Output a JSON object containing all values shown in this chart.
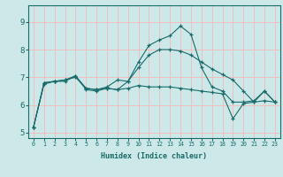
{
  "title": "",
  "xlabel": "Humidex (Indice chaleur)",
  "bg_color": "#cce8e8",
  "line_color": "#1a6b6b",
  "grid_color": "#f5b8b8",
  "xlim": [
    -0.5,
    23.5
  ],
  "ylim": [
    4.8,
    9.6
  ],
  "yticks": [
    5,
    6,
    7,
    8,
    9
  ],
  "xticks": [
    0,
    1,
    2,
    3,
    4,
    5,
    6,
    7,
    8,
    9,
    10,
    11,
    12,
    13,
    14,
    15,
    16,
    17,
    18,
    19,
    20,
    21,
    22,
    23
  ],
  "series": [
    [
      5.2,
      6.8,
      6.85,
      6.9,
      7.0,
      6.6,
      6.55,
      6.6,
      6.55,
      6.85,
      7.55,
      8.15,
      8.35,
      8.5,
      8.85,
      8.55,
      7.35,
      6.65,
      6.5,
      6.1,
      6.1,
      6.15,
      6.5,
      6.1
    ],
    [
      5.2,
      6.8,
      6.85,
      6.9,
      7.05,
      6.6,
      6.55,
      6.65,
      6.9,
      6.85,
      7.35,
      7.8,
      8.0,
      8.0,
      7.95,
      7.8,
      7.55,
      7.3,
      7.1,
      6.9,
      6.5,
      6.1,
      6.15,
      6.1
    ],
    [
      5.2,
      6.75,
      6.85,
      6.85,
      7.05,
      6.55,
      6.5,
      6.6,
      6.55,
      6.6,
      6.7,
      6.65,
      6.65,
      6.65,
      6.6,
      6.55,
      6.5,
      6.45,
      6.4,
      5.5,
      6.05,
      6.1,
      6.5,
      6.1
    ]
  ],
  "xlabel_fontsize": 6.0,
  "xtick_fontsize": 4.8,
  "ytick_fontsize": 6.5
}
